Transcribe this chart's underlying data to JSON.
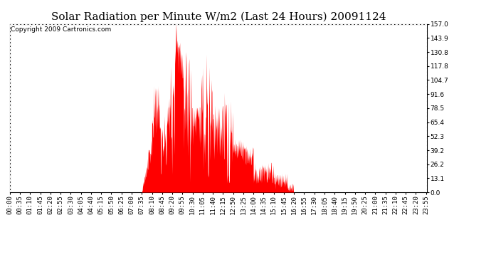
{
  "title": "Solar Radiation per Minute W/m2 (Last 24 Hours) 20091124",
  "copyright": "Copyright 2009 Cartronics.com",
  "bar_color": "#ff0000",
  "background_color": "#ffffff",
  "yticks": [
    0.0,
    13.1,
    26.2,
    39.2,
    52.3,
    65.4,
    78.5,
    91.6,
    104.7,
    117.8,
    130.8,
    143.9,
    157.0
  ],
  "ymax": 157.0,
  "ymin": 0.0,
  "title_fontsize": 11,
  "copyright_fontsize": 6.5,
  "tick_fontsize": 6.5,
  "xtick_interval": 35,
  "num_points": 1440,
  "sunrise": 455,
  "sunset": 978,
  "peak": 577
}
